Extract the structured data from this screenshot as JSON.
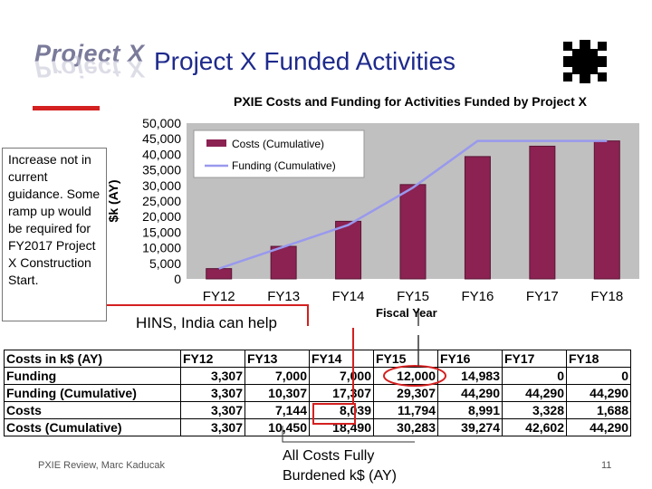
{
  "header": {
    "logo_text": "Project X",
    "title": "Project X Funded Activities"
  },
  "chart_title": "PXIE Costs and Funding for Activities Funded by Project X",
  "note": "Increase not in current guidance. Some ramp up would be required for FY2017 Project X Construction Start.",
  "hins_note": "HINS, India can help",
  "chart_data": {
    "type": "bar",
    "title": "PXIE Costs and Funding for Activities Funded by Project X",
    "xlabel": "Fiscal Year",
    "ylabel": "$k (AY)",
    "categories": [
      "FY12",
      "FY13",
      "FY14",
      "FY15",
      "FY16",
      "FY17",
      "FY18"
    ],
    "ylim": [
      0,
      50000
    ],
    "yticks": [
      "0",
      "5,000",
      "10,000",
      "15,000",
      "20,000",
      "25,000",
      "30,000",
      "35,000",
      "40,000",
      "45,000",
      "50,000"
    ],
    "series": [
      {
        "name": "Costs (Cumulative)",
        "kind": "bar",
        "color": "#8b2252",
        "values": [
          3307,
          10450,
          18490,
          30283,
          39274,
          42602,
          44290
        ]
      },
      {
        "name": "Funding (Cumulative)",
        "kind": "line",
        "color": "#9999ee",
        "values": [
          3307,
          10307,
          17307,
          29307,
          44290,
          44290,
          44290
        ]
      }
    ],
    "grid": false,
    "legend": "top-left"
  },
  "table": {
    "headers": [
      "Costs in k$ (AY)",
      "FY12",
      "FY13",
      "FY14",
      "FY15",
      "FY16",
      "FY17",
      "FY18"
    ],
    "rows": [
      [
        "Funding",
        "3,307",
        "7,000",
        "7,000",
        "12,000",
        "14,983",
        "0",
        "0"
      ],
      [
        "Funding (Cumulative)",
        "3,307",
        "10,307",
        "17,307",
        "29,307",
        "44,290",
        "44,290",
        "44,290"
      ],
      [
        "Costs",
        "3,307",
        "7,144",
        "8,039",
        "11,794",
        "8,991",
        "3,328",
        "1,688"
      ],
      [
        "Costs (Cumulative)",
        "3,307",
        "10,450",
        "18,490",
        "30,283",
        "39,274",
        "42,602",
        "44,290"
      ]
    ]
  },
  "footer": {
    "left": "PXIE Review, Marc Kaducak",
    "mid_line1": "All Costs Fully",
    "mid_line2": "Burdened k$ (AY)",
    "page": "11"
  },
  "colors": {
    "title": "#1e2a8c",
    "accent_red": "#d42020",
    "bar": "#8b2252",
    "line": "#9999ee",
    "plot_bg": "#c0c0c0"
  }
}
